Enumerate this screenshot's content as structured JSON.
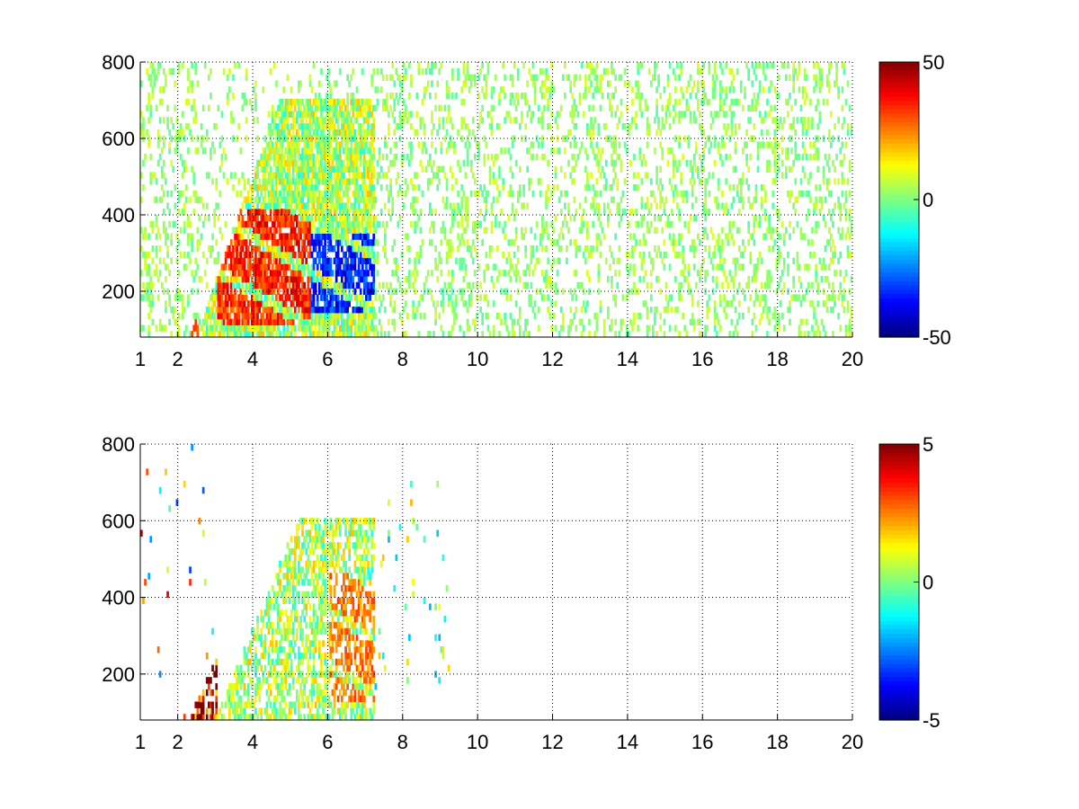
{
  "chart_data": [
    {
      "type": "heatmap",
      "title": "",
      "xlabel": "",
      "ylabel": "",
      "xlim": [
        1,
        20
      ],
      "ylim": [
        80,
        800
      ],
      "xticks": [
        "1",
        "2",
        "4",
        "6",
        "8",
        "10",
        "12",
        "14",
        "16",
        "18",
        "20"
      ],
      "xtick_values": [
        1,
        2,
        4,
        6,
        8,
        10,
        12,
        14,
        16,
        18,
        20
      ],
      "yticks": [
        "200",
        "400",
        "600",
        "800"
      ],
      "ytick_values": [
        200,
        400,
        600,
        800
      ],
      "grid": true,
      "grid_style": "dotted",
      "colormap": "jet",
      "colorbar": {
        "min": -50,
        "max": 50,
        "ticks": [
          "50",
          "0",
          "-50"
        ],
        "tick_values": [
          50,
          0,
          -50
        ]
      },
      "dense_region": {
        "x": [
          2.5,
          7.2
        ],
        "y": [
          80,
          700
        ]
      },
      "features": [
        {
          "name": "positive band",
          "x": [
            3.0,
            5.5
          ],
          "y": [
            100,
            400
          ],
          "value": 40
        },
        {
          "name": "negative band",
          "x": [
            5.5,
            7.2
          ],
          "y": [
            130,
            350
          ],
          "value": -40
        }
      ],
      "sparse_region": {
        "x": [
          7.2,
          20
        ],
        "y": [
          80,
          800
        ],
        "value_range": [
          -5,
          10
        ]
      }
    },
    {
      "type": "heatmap",
      "title": "",
      "xlabel": "",
      "ylabel": "",
      "xlim": [
        1,
        20
      ],
      "ylim": [
        80,
        800
      ],
      "xticks": [
        "1",
        "2",
        "4",
        "6",
        "8",
        "10",
        "12",
        "14",
        "16",
        "18",
        "20"
      ],
      "xtick_values": [
        1,
        2,
        4,
        6,
        8,
        10,
        12,
        14,
        16,
        18,
        20
      ],
      "yticks": [
        "200",
        "400",
        "600",
        "800"
      ],
      "ytick_values": [
        200,
        400,
        600,
        800
      ],
      "grid": true,
      "grid_style": "dotted",
      "colormap": "jet",
      "colorbar": {
        "min": -5,
        "max": 5,
        "ticks": [
          "5",
          "0",
          "-5"
        ],
        "tick_values": [
          5,
          0,
          -5
        ]
      },
      "dense_region": {
        "x": [
          3.0,
          7.2
        ],
        "y": [
          80,
          600
        ]
      },
      "features": [
        {
          "name": "positive streaks",
          "x": [
            6.0,
            7.2
          ],
          "y": [
            120,
            450
          ],
          "value": 3
        }
      ],
      "sparse_region": {
        "x": [
          7.2,
          9.2
        ],
        "y": [
          150,
          700
        ],
        "value_range": [
          -2,
          2
        ]
      }
    }
  ]
}
